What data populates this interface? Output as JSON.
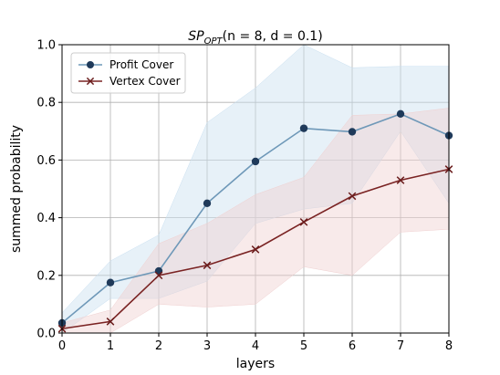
{
  "chart_data": {
    "type": "line",
    "title": "SPOPT(n = 8, d = 0.1)",
    "title_parts": {
      "base": "SP",
      "sub": "OPT",
      "rest": "(n = 8, d = 0.1)"
    },
    "xlabel": "layers",
    "ylabel": "summed probability",
    "xlim": [
      0,
      8
    ],
    "ylim": [
      0,
      1.0
    ],
    "x_ticks": [
      "0",
      "1",
      "2",
      "3",
      "4",
      "5",
      "6",
      "7",
      "8"
    ],
    "y_ticks": [
      "0.0",
      "0.2",
      "0.4",
      "0.6",
      "0.8",
      "1.0"
    ],
    "grid": true,
    "legend_position": "upper-left",
    "x": [
      0,
      1,
      2,
      3,
      4,
      5,
      6,
      7,
      8
    ],
    "series": [
      {
        "name": "Profit Cover",
        "color": "#6e98b8",
        "marker_color": "#1f3a5a",
        "band_color": "#c9dff0",
        "marker": "circle",
        "values": [
          0.035,
          0.175,
          0.215,
          0.45,
          0.595,
          0.71,
          0.698,
          0.76,
          0.685
        ],
        "band_upper": [
          0.07,
          0.25,
          0.34,
          0.73,
          0.85,
          1.0,
          0.92,
          0.925,
          0.925
        ],
        "band_lower": [
          0.0,
          0.12,
          0.12,
          0.18,
          0.38,
          0.43,
          0.45,
          0.7,
          0.45
        ]
      },
      {
        "name": "Vertex Cover",
        "color": "#7a2323",
        "marker_color": "#6a1c1c",
        "band_color": "#f0d0d0",
        "marker": "x",
        "values": [
          0.015,
          0.04,
          0.2,
          0.235,
          0.29,
          0.385,
          0.475,
          0.53,
          0.568
        ],
        "band_upper": [
          0.035,
          0.08,
          0.31,
          0.38,
          0.48,
          0.54,
          0.755,
          0.76,
          0.78
        ],
        "band_lower": [
          0.0,
          0.0,
          0.1,
          0.09,
          0.1,
          0.23,
          0.2,
          0.35,
          0.36
        ]
      }
    ]
  }
}
